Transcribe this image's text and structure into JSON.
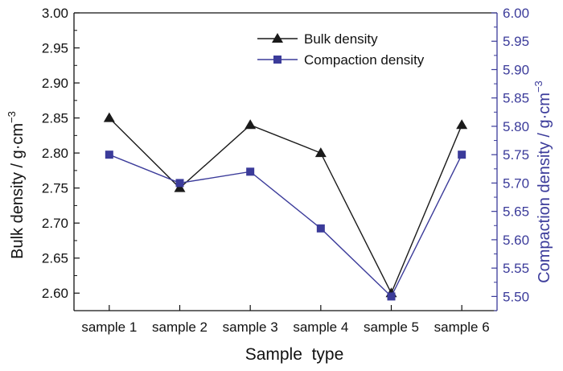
{
  "chart_data": {
    "type": "line",
    "title": "",
    "categories": [
      "sample 1",
      "sample 2",
      "sample 3",
      "sample 4",
      "sample 5",
      "sample 6"
    ],
    "xlabel": "Sample  type",
    "y_left": {
      "label": "Bulk density / g·cm",
      "unit_exponent": "−3",
      "range": [
        2.575,
        3.0
      ],
      "ticks": [
        "2.60",
        "2.65",
        "2.70",
        "2.75",
        "2.80",
        "2.85",
        "2.90",
        "2.95",
        "3.00"
      ]
    },
    "y_right": {
      "label": "Compaction density / g·cm",
      "unit_exponent": "−3",
      "range": [
        5.475,
        6.0
      ],
      "ticks": [
        "5.50",
        "5.55",
        "5.60",
        "5.65",
        "5.70",
        "5.75",
        "5.80",
        "5.85",
        "5.90",
        "5.95",
        "6.00"
      ]
    },
    "series": [
      {
        "name": "Bulk density",
        "axis": "left",
        "marker": "triangle",
        "color": "#1a1a1a",
        "values": [
          2.85,
          2.75,
          2.84,
          2.8,
          2.6,
          2.84
        ]
      },
      {
        "name": "Compaction density",
        "axis": "right",
        "marker": "square",
        "color": "#3b3b9a",
        "values": [
          5.75,
          5.7,
          5.72,
          5.62,
          5.5,
          5.75
        ]
      }
    ],
    "legend_position": "top-right",
    "grid": false
  }
}
